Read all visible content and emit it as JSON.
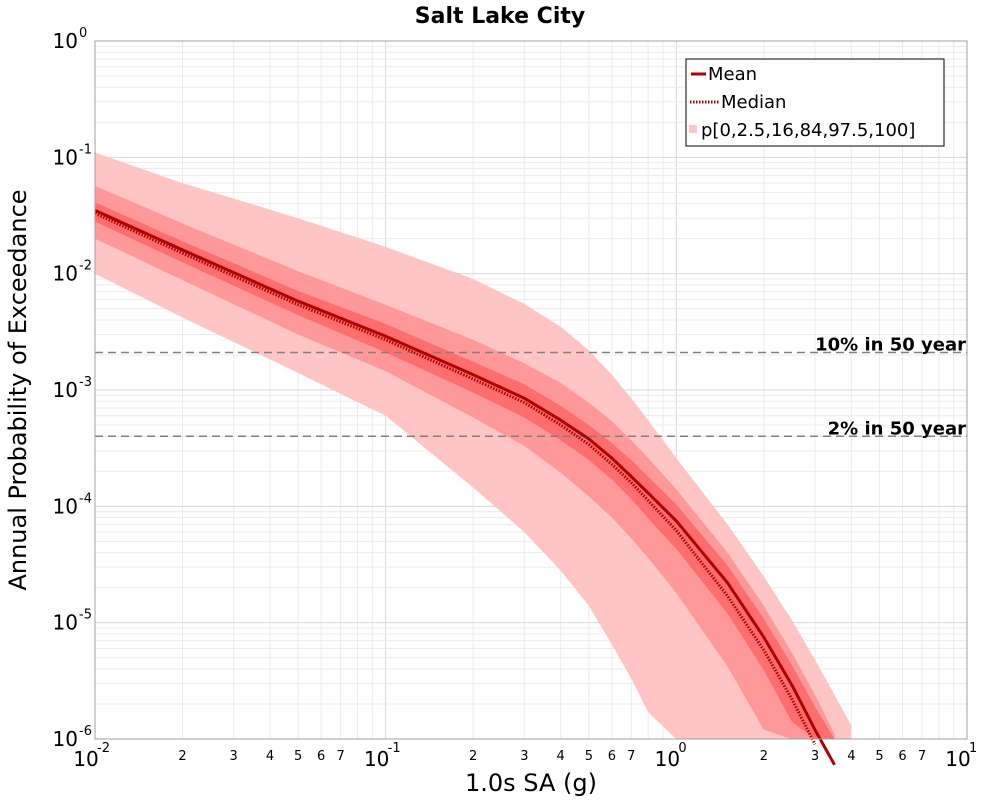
{
  "chart_data": {
    "type": "line",
    "title": "Salt Lake City",
    "xlabel": "1.0s SA (g)",
    "ylabel": "Annual Probability of Exceedance",
    "x_scale": "log",
    "y_scale": "log",
    "xlim": [
      0.01,
      10
    ],
    "ylim": [
      1e-06,
      1
    ],
    "grid": true,
    "legend_position": "top-right",
    "x_tick_labels": {
      "major": [
        {
          "value": 0.01,
          "base": "10",
          "exp": "-2"
        },
        {
          "value": 0.1,
          "base": "10",
          "exp": "-1"
        },
        {
          "value": 1,
          "base": "10",
          "exp": "0"
        },
        {
          "value": 10,
          "base": "10",
          "exp": "1"
        }
      ],
      "minor_digits": [
        "2",
        "3",
        "4",
        "5",
        "6",
        "7"
      ]
    },
    "y_tick_labels": [
      {
        "value": 1,
        "base": "10",
        "exp": "0"
      },
      {
        "value": 0.1,
        "base": "10",
        "exp": "-1"
      },
      {
        "value": 0.01,
        "base": "10",
        "exp": "-2"
      },
      {
        "value": 0.001,
        "base": "10",
        "exp": "-3"
      },
      {
        "value": 0.0001,
        "base": "10",
        "exp": "-4"
      },
      {
        "value": 1e-05,
        "base": "10",
        "exp": "-5"
      },
      {
        "value": 1e-06,
        "base": "10",
        "exp": "-6"
      }
    ],
    "x": [
      0.01,
      0.02,
      0.05,
      0.1,
      0.2,
      0.3,
      0.4,
      0.5,
      0.6,
      0.7,
      0.8,
      1.0,
      1.5,
      2.0,
      2.5,
      3.0,
      3.5,
      4.0,
      5.0,
      6.0
    ],
    "series": [
      {
        "name": "Mean",
        "style": "solid",
        "color": "#b00000",
        "values": [
          0.035,
          0.016,
          0.0058,
          0.0029,
          0.00135,
          0.00085,
          0.00055,
          0.00038,
          0.00026,
          0.00018,
          0.00013,
          7.5e-05,
          2.2e-05,
          7.5e-06,
          2.9e-06,
          1.2e-06,
          6e-07,
          null,
          null,
          null
        ]
      },
      {
        "name": "Median",
        "style": "dotted",
        "color": "#b00000",
        "values": [
          0.033,
          0.015,
          0.0054,
          0.0027,
          0.00124,
          0.00078,
          0.0005,
          0.00034,
          0.00023,
          0.00016,
          0.000112,
          6.2e-05,
          1.7e-05,
          5.8e-06,
          2.2e-06,
          9e-07,
          null,
          null,
          null,
          null
        ]
      }
    ],
    "bands": {
      "name": "p[0,2.5,16,84,97.5,100]",
      "outer": {
        "color": "#ffc4c4",
        "lower": [
          0.01,
          0.0042,
          0.0014,
          0.0006,
          0.000145,
          6e-05,
          2.8e-05,
          1.4e-05,
          6.5e-06,
          3.3e-06,
          1.7e-06,
          6e-07,
          null,
          null,
          null,
          null,
          null,
          null,
          null,
          null
        ],
        "upper": [
          0.11,
          0.06,
          0.03,
          0.017,
          0.009,
          0.0055,
          0.0035,
          0.0022,
          0.00135,
          0.00085,
          0.00055,
          0.00026,
          7e-05,
          2.5e-05,
          1.05e-05,
          4.8e-06,
          2.4e-06,
          1.3e-06,
          null,
          null
        ]
      },
      "middle": {
        "color": "#ff9999",
        "lower": [
          0.02,
          0.0088,
          0.003,
          0.00145,
          0.00058,
          0.00033,
          0.000195,
          0.000122,
          8e-05,
          5.3e-05,
          3.6e-05,
          1.8e-05,
          4.2e-06,
          1.2e-06,
          null,
          null,
          null,
          null,
          null,
          null
        ],
        "upper": [
          0.057,
          0.027,
          0.0105,
          0.0054,
          0.0027,
          0.0017,
          0.00115,
          0.00078,
          0.00054,
          0.00037,
          0.00026,
          0.00014,
          4e-05,
          1.4e-05,
          5.5e-06,
          2.4e-06,
          1.1e-06,
          null,
          null,
          null
        ]
      },
      "inner": {
        "color": "#ff6e6e",
        "lower": [
          0.028,
          0.0125,
          0.0044,
          0.0021,
          0.00095,
          0.00058,
          0.00037,
          0.00025,
          0.00017,
          0.000115,
          7.9e-05,
          4.3e-05,
          1.2e-05,
          3.9e-06,
          1.4e-06,
          5e-07,
          null,
          null,
          null,
          null
        ],
        "upper": [
          0.041,
          0.019,
          0.0071,
          0.0037,
          0.00175,
          0.00112,
          0.00073,
          0.0005,
          0.00035,
          0.00025,
          0.00018,
          0.000104,
          3.1e-05,
          1.08e-05,
          4.3e-06,
          1.9e-06,
          9e-07,
          null,
          null,
          null
        ]
      }
    },
    "reference_lines": [
      {
        "label": "10% in 50 year",
        "y": 0.0021
      },
      {
        "label": "2% in 50 year",
        "y": 0.0004
      }
    ]
  }
}
